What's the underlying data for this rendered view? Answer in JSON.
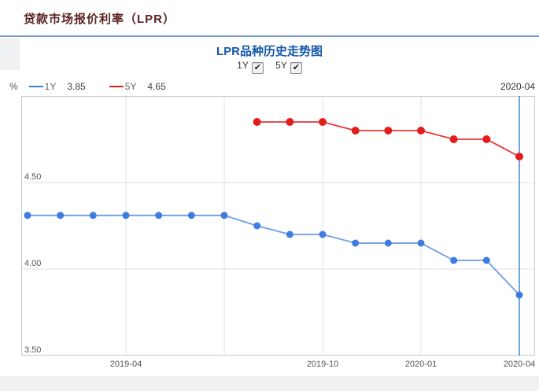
{
  "page": {
    "title": "贷款市场报价利率（LPR）"
  },
  "chart": {
    "title": "LPR品种历史走势图",
    "controls": [
      {
        "label": "1Y",
        "checked": true
      },
      {
        "label": "5Y",
        "checked": true
      }
    ],
    "unit": "%",
    "legend": [
      {
        "name": "1Y",
        "value": "3.85",
        "color": "#3e7ce0"
      },
      {
        "name": "5Y",
        "value": "4.65",
        "color": "#e41c1c"
      }
    ],
    "current_date": "2020-04",
    "check_glyph": "✔"
  },
  "chart_data": {
    "type": "line",
    "title": "LPR品种历史走势图",
    "ylabel": "%",
    "x": [
      "2019-01",
      "2019-02",
      "2019-03",
      "2019-04",
      "2019-05",
      "2019-06",
      "2019-07",
      "2019-08",
      "2019-09",
      "2019-10",
      "2019-11",
      "2019-12",
      "2020-01",
      "2020-02",
      "2020-03",
      "2020-04"
    ],
    "series": [
      {
        "name": "1Y",
        "line_color": "#6d9ce8",
        "point_color": "#3e7ce0",
        "point_radius": 4.5,
        "values": [
          4.31,
          4.31,
          4.31,
          4.31,
          4.31,
          4.31,
          4.31,
          4.25,
          4.2,
          4.2,
          4.15,
          4.15,
          4.15,
          4.05,
          4.05,
          3.85
        ]
      },
      {
        "name": "5Y",
        "line_color": "#e53535",
        "point_color": "#e41c1c",
        "point_radius": 5,
        "values": [
          null,
          null,
          null,
          null,
          null,
          null,
          null,
          4.85,
          4.85,
          4.85,
          4.8,
          4.8,
          4.8,
          4.75,
          4.75,
          4.65
        ]
      }
    ],
    "ylim": [
      3.5,
      5.0
    ],
    "yticks": [
      {
        "v": 3.5,
        "label": "3.50"
      },
      {
        "v": 4.0,
        "label": "4.00"
      },
      {
        "v": 4.5,
        "label": "4.50"
      }
    ],
    "grid_y_values": [
      4.0,
      4.5
    ],
    "xticks": [
      {
        "i": 3,
        "label": "2019-04"
      },
      {
        "i": 9,
        "label": "2019-10"
      },
      {
        "i": 12,
        "label": "2020-01"
      },
      {
        "i": 15,
        "label": "2020-04"
      }
    ],
    "grid_x_indices": [
      3,
      6,
      9,
      12,
      15
    ],
    "highlight_index": 15,
    "grid_on": true,
    "legend_position": "top-left",
    "colors": {
      "border": "#c5cacd",
      "grid": "#e0e0e0",
      "crosshair": "#4285d6",
      "tick_text": "#555555"
    }
  }
}
